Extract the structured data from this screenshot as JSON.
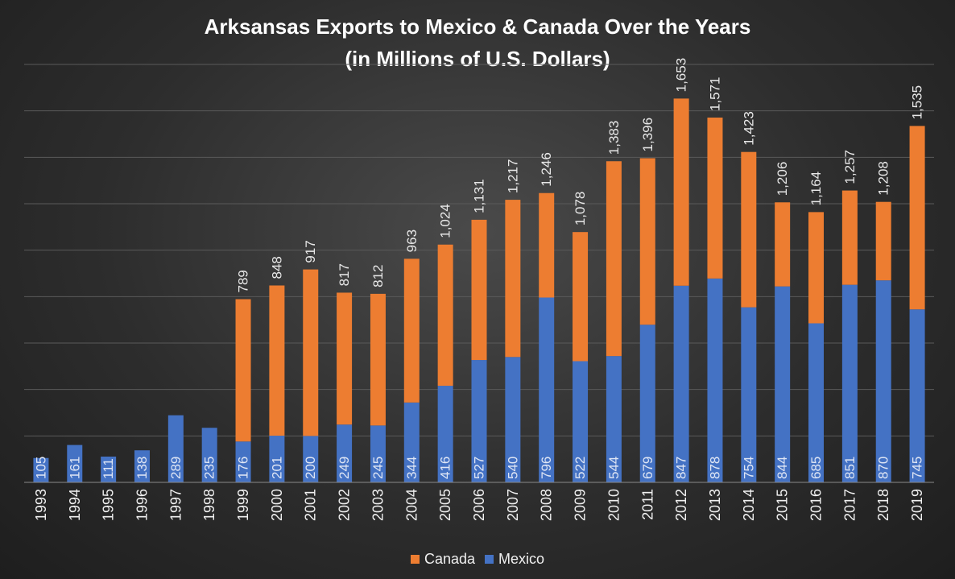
{
  "chart_data": {
    "type": "bar",
    "stacked": true,
    "title": "Arksansas Exports to Mexico & Canada Over the Years",
    "subtitle": "(in Millions of U.S. Dollars)",
    "categories": [
      "1993",
      "1994",
      "1995",
      "1996",
      "1997",
      "1998",
      "1999",
      "2000",
      "2001",
      "2002",
      "2003",
      "2004",
      "2005",
      "2006",
      "2007",
      "2008",
      "2009",
      "2010",
      "2011",
      "2012",
      "2013",
      "2014",
      "2015",
      "2016",
      "2017",
      "2018",
      "2019"
    ],
    "series": [
      {
        "name": "Mexico",
        "color": "#4472c4",
        "values": [
          105,
          161,
          111,
          138,
          289,
          235,
          176,
          201,
          200,
          249,
          245,
          344,
          416,
          527,
          540,
          796,
          522,
          544,
          679,
          847,
          878,
          754,
          844,
          685,
          851,
          870,
          745
        ],
        "labels": [
          "105",
          "161",
          "111",
          "138",
          "289",
          "235",
          "176",
          "201",
          "200",
          "249",
          "245",
          "344",
          "416",
          "527",
          "540",
          "796",
          "522",
          "544",
          "679",
          "847",
          "878",
          "754",
          "844",
          "685",
          "851",
          "870",
          "745"
        ]
      },
      {
        "name": "Canada",
        "color": "#ed7d31",
        "values": [
          0,
          0,
          0,
          0,
          0,
          0,
          613,
          647,
          717,
          568,
          567,
          619,
          608,
          604,
          677,
          450,
          556,
          839,
          717,
          806,
          693,
          669,
          362,
          479,
          406,
          338,
          790
        ]
      }
    ],
    "totals": [
      null,
      null,
      null,
      null,
      null,
      null,
      789,
      848,
      917,
      817,
      812,
      963,
      1024,
      1131,
      1217,
      1246,
      1078,
      1383,
      1396,
      1653,
      1571,
      1423,
      1206,
      1164,
      1257,
      1208,
      1535
    ],
    "total_labels": [
      "",
      "",
      "",
      "",
      "",
      "",
      "789",
      "848",
      "917",
      "817",
      "812",
      "963",
      "1,024",
      "1,131",
      "1,217",
      "1,246",
      "1,078",
      "1,383",
      "1,396",
      "1,653",
      "1,571",
      "1,423",
      "1,206",
      "1,164",
      "1,257",
      "1,208",
      "1,535"
    ],
    "ylim": [
      0,
      1800
    ],
    "y_gridline_step": 200,
    "grid": true,
    "legend_position": "bottom",
    "legend": [
      {
        "name": "Canada",
        "color": "#ed7d31"
      },
      {
        "name": "Mexico",
        "color": "#4472c4"
      }
    ]
  }
}
